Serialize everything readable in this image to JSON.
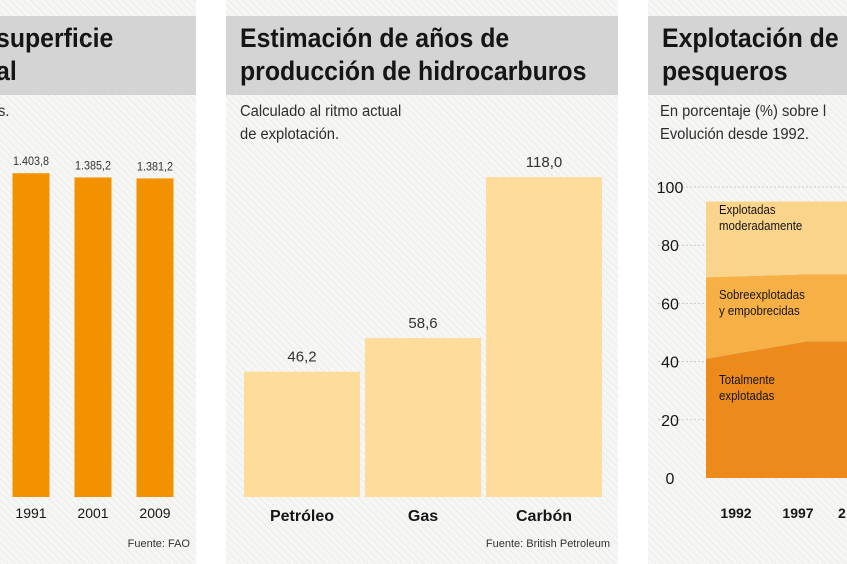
{
  "panels": [
    {
      "title": "superficie\nal",
      "subtitle": "s.",
      "source": "Fuente: FAO"
    },
    {
      "title": "Estimación de años de\nproducción de hidrocarburos",
      "subtitle": "Calculado al ritmo actual\nde explotación.",
      "source": "Fuente: British Petroleum"
    },
    {
      "title": "Explotación de l\npesqueros",
      "subtitle": "En porcentaje (%) sobre l\nEvolución desde 1992."
    }
  ],
  "colors": {
    "dark_orange": "#f29200",
    "light_yellow": "#fddc9c",
    "orange_mid": "#f7b046",
    "orange_dark": "#ec8a1c",
    "title_bar": "#d4d4d4"
  },
  "chart_data": [
    {
      "type": "bar",
      "categories": [
        "1991",
        "2001",
        "2009"
      ],
      "values": [
        1403.8,
        1385.2,
        1381.2
      ],
      "value_labels": [
        "1.403,8",
        "1.385,2",
        "1.381,2"
      ],
      "ylim": [
        0,
        1500
      ],
      "color": "#f29200"
    },
    {
      "type": "bar",
      "categories": [
        "Petróleo",
        "Gas",
        "Carbón"
      ],
      "values": [
        46.2,
        58.6,
        118.0
      ],
      "value_labels": [
        "46,2",
        "58,6",
        "118,0"
      ],
      "ylim": [
        0,
        120
      ],
      "color": "#fddc9c"
    },
    {
      "type": "area",
      "stacked": true,
      "x": [
        "1992",
        "1997"
      ],
      "ylim": [
        0,
        100
      ],
      "y_ticks": [
        "100",
        "80",
        "60",
        "40",
        "20",
        "0"
      ],
      "series": [
        {
          "name": "Totalmente\nexplotadas",
          "values": [
            41,
            47
          ],
          "color": "#ec8a1c"
        },
        {
          "name": "Sobreexplotadas\ny empobrecidas",
          "values": [
            28,
            23
          ],
          "color": "#f7b046"
        },
        {
          "name": "Explotadas\nmoderadamente",
          "values": [
            26,
            25
          ],
          "color": "#fbd48c"
        }
      ]
    }
  ]
}
